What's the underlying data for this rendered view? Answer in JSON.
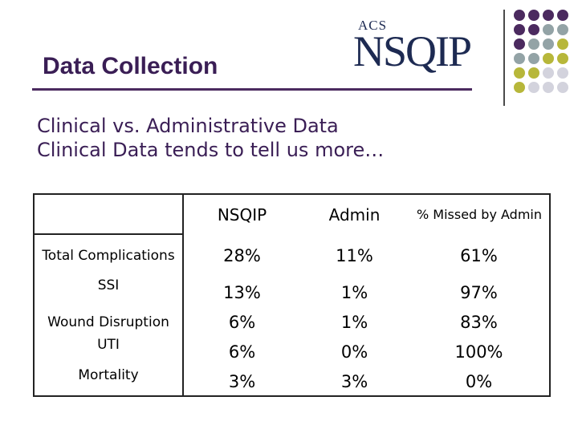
{
  "header": {
    "title": "Data Collection",
    "logo_acs": "ACS",
    "logo_main": "NSQIP"
  },
  "subtitle": {
    "line1": "Clinical vs. Administrative Data",
    "line2": "Clinical Data tends to tell us more…"
  },
  "table": {
    "columns": [
      "NSQIP",
      "Admin",
      "% Missed by Admin"
    ],
    "rows": [
      {
        "label": "Total Complications",
        "nsqip": "28%",
        "admin": "11%",
        "missed": "61%"
      },
      {
        "label": "SSI",
        "nsqip": "13%",
        "admin": "1%",
        "missed": "97%"
      },
      {
        "label": "Wound Disruption",
        "nsqip": "6%",
        "admin": "1%",
        "missed": "83%"
      },
      {
        "label": "UTI",
        "nsqip": "6%",
        "admin": "0%",
        "missed": "100%"
      },
      {
        "label": "Mortality",
        "nsqip": "3%",
        "admin": "3%",
        "missed": "0%"
      }
    ]
  },
  "colors": {
    "purple": "#4b2a5f",
    "gray": "#93a3a6",
    "olive": "#b7b73a",
    "lightgray": "#d3d3dd"
  }
}
